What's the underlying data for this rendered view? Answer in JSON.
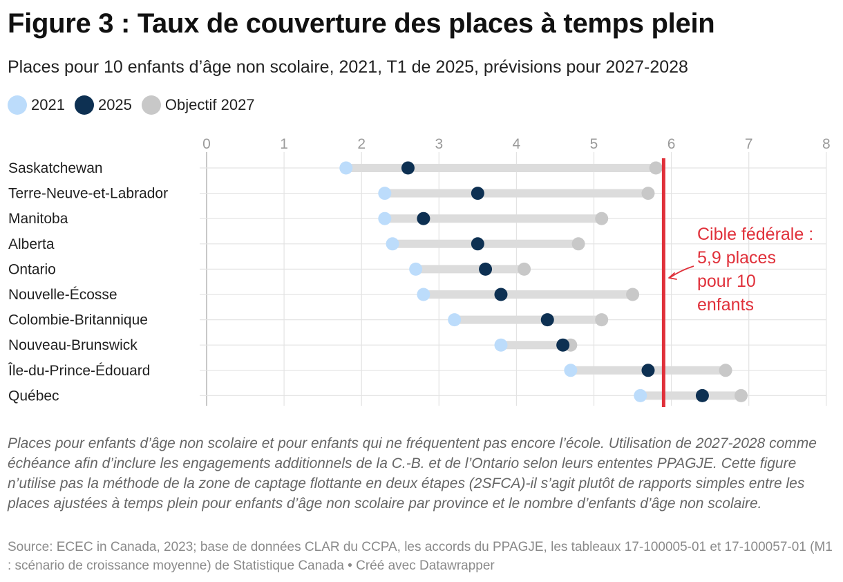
{
  "title": "Figure 3 : Taux de couverture des places à temps plein",
  "subtitle": "Places pour 10 enfants d’âge non scolaire, 2021, T1 de 2025, prévisions pour 2027-2028",
  "legend": [
    {
      "label": "2021",
      "color": "#bcdcfb"
    },
    {
      "label": "2025",
      "color": "#0d3052"
    },
    {
      "label": "Objectif 2027",
      "color": "#c8c8c8"
    }
  ],
  "chart_data": {
    "type": "range-dot",
    "x_ticks": [
      "0",
      "1",
      "2",
      "3",
      "4",
      "5",
      "6",
      "7",
      "8"
    ],
    "xlim": [
      0,
      8
    ],
    "grid": true,
    "categories": [
      "Saskatchewan",
      "Terre-Neuve-et-Labrador",
      "Manitoba",
      "Alberta",
      "Ontario",
      "Nouvelle-Écosse",
      "Colombie-Britannique",
      "Nouveau-Brunswick",
      "Île-du-Prince-Édouard",
      "Québec"
    ],
    "series": [
      {
        "name": "2021",
        "color": "#bcdcfb",
        "values": [
          1.8,
          2.3,
          2.3,
          2.4,
          2.7,
          2.8,
          3.2,
          3.8,
          4.7,
          5.6
        ]
      },
      {
        "name": "2025",
        "color": "#0d3052",
        "values": [
          2.6,
          3.5,
          2.8,
          3.5,
          3.6,
          3.8,
          4.4,
          4.6,
          5.7,
          6.4
        ]
      },
      {
        "name": "Objectif 2027",
        "color": "#c8c8c8",
        "values": [
          5.8,
          5.7,
          5.1,
          4.8,
          4.1,
          5.5,
          5.1,
          4.7,
          6.7,
          6.9
        ]
      }
    ],
    "reference_line": {
      "value": 5.9,
      "color": "#e0303a"
    },
    "annotation": {
      "lines": [
        "Cible fédérale :",
        "5,9 places",
        "pour 10",
        "enfants"
      ],
      "color": "#e0303a"
    }
  },
  "notes": "Places pour enfants d’âge non scolaire et pour enfants qui ne fréquentent pas encore l’école. Utilisation de 2027-2028 comme échéance afin d’inclure les engagements additionnels de la C.-B. et de l’Ontario selon leurs ententes PPAGJE. Cette figure n’utilise pas la méthode de la zone de captage flottante en deux étapes (2SFCA)-il s’agit plutôt de rapports simples entre les places ajustées à temps plein pour enfants d’âge non scolaire par province et le nombre d’enfants d’âge non scolaire.",
  "source": "Source: ECEC in Canada, 2023; base de données CLAR du CCPA, les accords du PPAGJE, les tableaux 17-100005-01 et 17-100057-01 (M1 : scénario de croissance moyenne) de Statistique Canada • Créé avec Datawrapper"
}
